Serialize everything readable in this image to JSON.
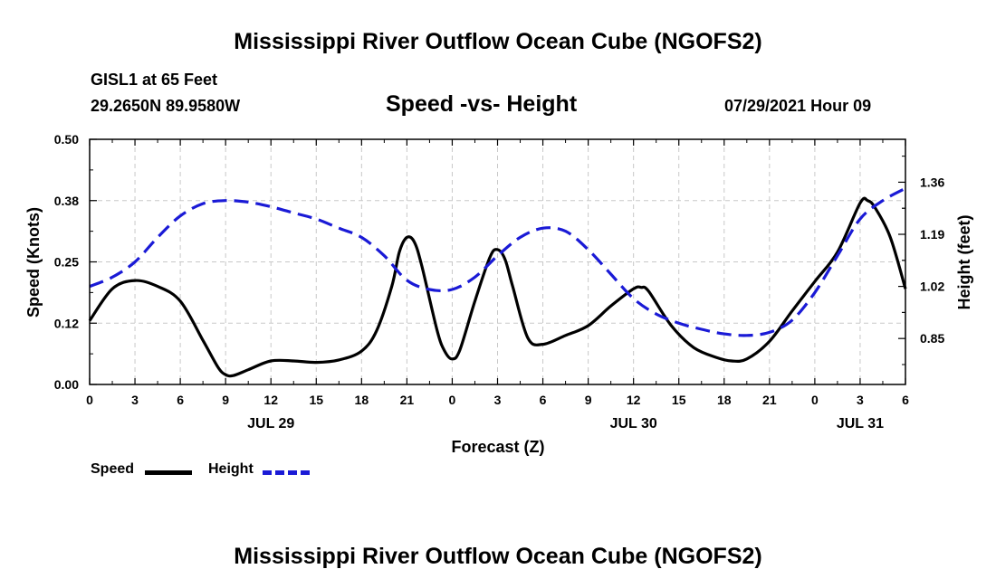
{
  "page": {
    "title_top": "Mississippi River Outflow Ocean Cube (NGOFS2)",
    "title_bottom": "Mississippi River Outflow Ocean Cube (NGOFS2)",
    "station": "GISL1 at 65 Feet",
    "location": "29.2650N  89.9580W",
    "subtitle": "Speed -vs- Height",
    "datetime": "07/29/2021 Hour 09"
  },
  "legend": {
    "speed_label": "Speed",
    "height_label": "Height"
  },
  "colors": {
    "speed": "#000000",
    "height": "#1a1ad6",
    "grid": "#c8c8c8"
  },
  "chart_data": {
    "type": "line",
    "title": "Speed -vs- Height",
    "xlabel": "Forecast (Z)",
    "ylabel": "Speed (Knots)",
    "y2label": "Height (feet)",
    "x_unit": "hours since Jul 29 00Z",
    "xlim": [
      0,
      54
    ],
    "ylim": [
      0.0,
      0.5
    ],
    "y2lim": [
      0.7,
      1.5
    ],
    "x_ticks": [
      0,
      3,
      6,
      9,
      12,
      15,
      18,
      21,
      24,
      27,
      30,
      33,
      36,
      39,
      42,
      45,
      48,
      51,
      54
    ],
    "x_tick_labels": [
      "0",
      "3",
      "6",
      "9",
      "12",
      "15",
      "18",
      "21",
      "0",
      "3",
      "6",
      "9",
      "12",
      "15",
      "18",
      "21",
      "0",
      "3",
      "6"
    ],
    "y_ticks": [
      0.0,
      0.125,
      0.25,
      0.375,
      0.5
    ],
    "y_tick_labels": [
      "0.00",
      "0.12",
      "0.25",
      "0.38",
      "0.50"
    ],
    "y2_ticks": [
      0.85,
      1.02,
      1.19,
      1.36
    ],
    "y2_tick_labels": [
      "0.85",
      "1.02",
      "1.19",
      "1.36"
    ],
    "day_labels": [
      {
        "x": 12,
        "label": "JUL 29"
      },
      {
        "x": 36,
        "label": "JUL 30"
      },
      {
        "x": 51,
        "label": "JUL 31"
      }
    ],
    "grid": true,
    "legend_position": "bottom-left",
    "series": [
      {
        "name": "Speed",
        "axis": "left",
        "style": "solid",
        "x": [
          0,
          1.5,
          3,
          4.5,
          6,
          7.5,
          8.5,
          9,
          9.5,
          10.5,
          12,
          13.5,
          15,
          16.5,
          18,
          19,
          20,
          20.5,
          21,
          21.5,
          22,
          23,
          23.5,
          24,
          24.5,
          25.5,
          26.5,
          27,
          27.5,
          28,
          29,
          30,
          31.5,
          33,
          34.5,
          36,
          36.5,
          37,
          38.5,
          40,
          41.5,
          42.5,
          43.5,
          45,
          46.5,
          48,
          49.5,
          51,
          51.5,
          52,
          53,
          54
        ],
        "y": [
          0.13,
          0.195,
          0.212,
          0.2,
          0.17,
          0.09,
          0.035,
          0.02,
          0.018,
          0.03,
          0.048,
          0.048,
          0.045,
          0.05,
          0.068,
          0.11,
          0.2,
          0.27,
          0.3,
          0.29,
          0.24,
          0.11,
          0.068,
          0.052,
          0.07,
          0.17,
          0.26,
          0.275,
          0.255,
          0.2,
          0.095,
          0.082,
          0.1,
          0.12,
          0.16,
          0.195,
          0.198,
          0.19,
          0.12,
          0.075,
          0.055,
          0.048,
          0.052,
          0.088,
          0.15,
          0.21,
          0.27,
          0.37,
          0.375,
          0.36,
          0.3,
          0.195
        ]
      },
      {
        "name": "Height",
        "axis": "right",
        "style": "dashed",
        "x": [
          0,
          1.5,
          3,
          4.5,
          6,
          7.5,
          9,
          10.5,
          12,
          13.5,
          15,
          16.5,
          18,
          19.5,
          21,
          22.5,
          24,
          25.5,
          27,
          28.5,
          30,
          31.5,
          33,
          34.5,
          36,
          37.5,
          39,
          40.5,
          42,
          43.5,
          45,
          46.5,
          48,
          49.5,
          51,
          52.5,
          54
        ],
        "y": [
          1.02,
          1.05,
          1.1,
          1.18,
          1.25,
          1.29,
          1.3,
          1.295,
          1.28,
          1.26,
          1.24,
          1.21,
          1.18,
          1.12,
          1.04,
          1.01,
          1.01,
          1.05,
          1.12,
          1.18,
          1.21,
          1.2,
          1.14,
          1.06,
          0.98,
          0.93,
          0.9,
          0.88,
          0.865,
          0.86,
          0.87,
          0.91,
          1.0,
          1.12,
          1.24,
          1.3,
          1.34
        ]
      }
    ]
  }
}
